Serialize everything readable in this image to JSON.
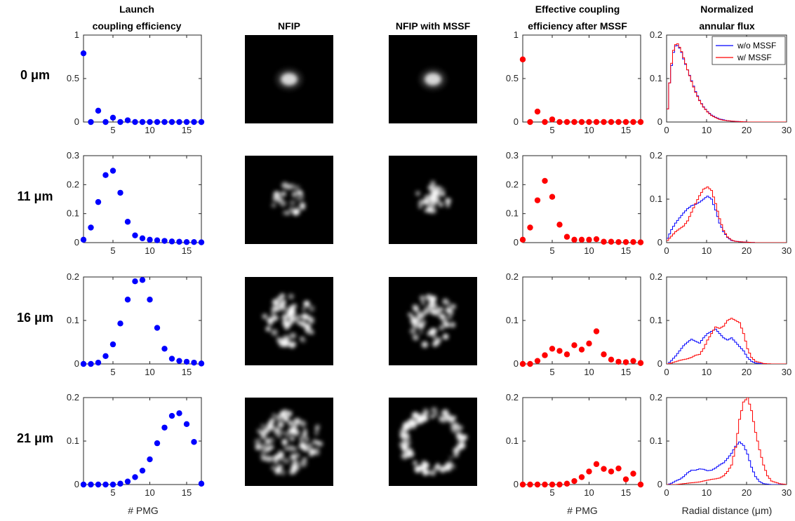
{
  "headers": {
    "launch": [
      "Launch",
      "coupling efficiency"
    ],
    "nfip": "NFIP",
    "nfip_mssf": "NFIP with MSSF",
    "effective": [
      "Effective coupling",
      "efficiency after MSSF"
    ],
    "annular": [
      "Normalized",
      "annular flux"
    ]
  },
  "row_labels": [
    "0 μm",
    "11 μm",
    "16 μm",
    "21 μm"
  ],
  "xlabels": {
    "pmg": "# PMG",
    "radial": "Radial distance (μm)"
  },
  "colors": {
    "blue": "#0000ff",
    "red": "#ff0000"
  },
  "chart_data": [
    {
      "type": "scatter",
      "panel": "launch-coupling-efficiency",
      "xlabel": "# PMG",
      "xlim": [
        1,
        17
      ],
      "xticks": [
        5,
        10,
        15
      ],
      "color": "#0000ff",
      "x": [
        1,
        2,
        3,
        4,
        5,
        6,
        7,
        8,
        9,
        10,
        11,
        12,
        13,
        14,
        15,
        16,
        17
      ],
      "rows": [
        {
          "offset": "0 μm",
          "ylim": [
            0,
            1
          ],
          "yticks": [
            "0",
            "0.5",
            "1"
          ],
          "values": [
            0.79,
            0.0,
            0.13,
            0.0,
            0.05,
            0.0,
            0.02,
            0.0,
            0.0,
            0.0,
            0.0,
            0.0,
            0.0,
            0.0,
            0.0,
            0.0,
            0.0
          ]
        },
        {
          "offset": "11 μm",
          "ylim": [
            0,
            0.3
          ],
          "yticks": [
            "0",
            "0.1",
            "0.2",
            "0.3"
          ],
          "values": [
            0.01,
            0.052,
            0.14,
            0.233,
            0.248,
            0.172,
            0.072,
            0.025,
            0.015,
            0.01,
            0.008,
            0.006,
            0.004,
            0.003,
            0.002,
            0.002,
            0.001
          ]
        },
        {
          "offset": "16 μm",
          "ylim": [
            0,
            0.2
          ],
          "yticks": [
            "0",
            "0.1",
            "0.2"
          ],
          "values": [
            0.0,
            0.0,
            0.003,
            0.018,
            0.045,
            0.093,
            0.148,
            0.19,
            0.193,
            0.148,
            0.083,
            0.035,
            0.012,
            0.007,
            0.005,
            0.003,
            0.001
          ]
        },
        {
          "offset": "21 μm",
          "ylim": [
            0,
            0.2
          ],
          "yticks": [
            "0",
            "0.1",
            "0.2"
          ],
          "values": [
            0.0,
            0.0,
            0.0,
            0.0,
            0.0,
            0.002,
            0.007,
            0.017,
            0.032,
            0.058,
            0.095,
            0.131,
            0.158,
            0.164,
            0.139,
            0.098,
            0.002
          ]
        }
      ]
    },
    {
      "type": "scatter",
      "panel": "effective-coupling-efficiency-after-mssf",
      "xlabel": "# PMG",
      "xlim": [
        1,
        17
      ],
      "xticks": [
        5,
        10,
        15
      ],
      "color": "#ff0000",
      "x": [
        1,
        2,
        3,
        4,
        5,
        6,
        7,
        8,
        9,
        10,
        11,
        12,
        13,
        14,
        15,
        16,
        17
      ],
      "rows": [
        {
          "offset": "0 μm",
          "ylim": [
            0,
            1
          ],
          "yticks": [
            "0",
            "0.5",
            "1"
          ],
          "values": [
            0.72,
            0.0,
            0.12,
            0.0,
            0.03,
            0.0,
            0.0,
            0.0,
            0.0,
            0.0,
            0.0,
            0.0,
            0.0,
            0.0,
            0.0,
            0.0,
            0.0
          ]
        },
        {
          "offset": "11 μm",
          "ylim": [
            0,
            0.3
          ],
          "yticks": [
            "0",
            "0.1",
            "0.2",
            "0.3"
          ],
          "values": [
            0.01,
            0.052,
            0.146,
            0.213,
            0.158,
            0.062,
            0.02,
            0.01,
            0.01,
            0.01,
            0.012,
            0.003,
            0.003,
            0.002,
            0.002,
            0.002,
            0.001
          ]
        },
        {
          "offset": "16 μm",
          "ylim": [
            0,
            0.2
          ],
          "yticks": [
            "0",
            "0.1",
            "0.2"
          ],
          "values": [
            0.0,
            0.0,
            0.007,
            0.02,
            0.035,
            0.03,
            0.022,
            0.043,
            0.033,
            0.047,
            0.075,
            0.022,
            0.01,
            0.005,
            0.004,
            0.007,
            0.002
          ]
        },
        {
          "offset": "21 μm",
          "ylim": [
            0,
            0.2
          ],
          "yticks": [
            "0",
            "0.1",
            "0.2"
          ],
          "values": [
            0.0,
            0.0,
            0.0,
            0.0,
            0.0,
            0.0,
            0.002,
            0.008,
            0.017,
            0.03,
            0.047,
            0.036,
            0.03,
            0.037,
            0.012,
            0.025,
            0.0
          ]
        }
      ]
    },
    {
      "type": "line",
      "panel": "normalized-annular-flux",
      "xlabel": "Radial distance (μm)",
      "xlim": [
        0,
        30
      ],
      "xticks": [
        0,
        10,
        20,
        30
      ],
      "legend": {
        "placement": "top-right",
        "entries": [
          "w/o MSSF",
          "w/ MSSF"
        ]
      },
      "rows": [
        {
          "offset": "0 μm",
          "ylim": [
            0,
            0.2
          ],
          "yticks": [
            "0",
            "0.1",
            "0.2"
          ],
          "series": [
            {
              "name": "w/o MSSF",
              "color": "#0000ff",
              "x": [
                0,
                0.5,
                1,
                1.5,
                2,
                2.5,
                3,
                3.5,
                4,
                5,
                6,
                7,
                8,
                9,
                10,
                11,
                12,
                13,
                14,
                15,
                16,
                18,
                20,
                22,
                25,
                30
              ],
              "values": [
                0.03,
                0.09,
                0.13,
                0.16,
                0.175,
                0.176,
                0.17,
                0.16,
                0.145,
                0.12,
                0.095,
                0.07,
                0.05,
                0.035,
                0.024,
                0.016,
                0.011,
                0.007,
                0.005,
                0.003,
                0.002,
                0.001,
                0.0,
                0.0,
                0.0,
                0.0
              ]
            },
            {
              "name": "w/ MSSF",
              "color": "#ff0000",
              "x": [
                0,
                0.5,
                1,
                1.5,
                2,
                2.5,
                3,
                3.5,
                4,
                5,
                6,
                7,
                8,
                9,
                10,
                11,
                12,
                13,
                14,
                15,
                16,
                18,
                20,
                22,
                25,
                30
              ],
              "values": [
                0.03,
                0.09,
                0.135,
                0.165,
                0.178,
                0.18,
                0.172,
                0.162,
                0.148,
                0.12,
                0.093,
                0.068,
                0.049,
                0.034,
                0.023,
                0.015,
                0.01,
                0.006,
                0.004,
                0.003,
                0.002,
                0.001,
                0.0,
                0.0,
                0.0,
                0.0
              ]
            }
          ]
        },
        {
          "offset": "11 μm",
          "ylim": [
            0,
            0.2
          ],
          "yticks": [
            "0",
            "0.1",
            "0.2"
          ],
          "series": [
            {
              "name": "w/o MSSF",
              "color": "#0000ff",
              "x": [
                0,
                1,
                2,
                3,
                4,
                5,
                6,
                7,
                8,
                9,
                10,
                11,
                12,
                13,
                14,
                15,
                16,
                17,
                18,
                20,
                22,
                25,
                30
              ],
              "values": [
                0.01,
                0.03,
                0.045,
                0.057,
                0.068,
                0.078,
                0.085,
                0.088,
                0.093,
                0.1,
                0.107,
                0.1,
                0.075,
                0.045,
                0.025,
                0.012,
                0.005,
                0.003,
                0.002,
                0.001,
                0.0,
                0.0,
                0.0
              ]
            },
            {
              "name": "w/ MSSF",
              "color": "#ff0000",
              "x": [
                0,
                1,
                2,
                3,
                4,
                5,
                6,
                7,
                8,
                9,
                10,
                11,
                12,
                13,
                14,
                15,
                16,
                17,
                18,
                20,
                22,
                25,
                30
              ],
              "values": [
                0.005,
                0.015,
                0.025,
                0.032,
                0.038,
                0.05,
                0.07,
                0.09,
                0.108,
                0.123,
                0.128,
                0.12,
                0.09,
                0.055,
                0.028,
                0.013,
                0.006,
                0.003,
                0.002,
                0.001,
                0.0,
                0.0,
                0.0
              ]
            }
          ]
        },
        {
          "offset": "16 μm",
          "ylim": [
            0,
            0.2
          ],
          "yticks": [
            "0",
            "0.1",
            "0.2"
          ],
          "series": [
            {
              "name": "w/o MSSF",
              "color": "#0000ff",
              "x": [
                0,
                1,
                2,
                3,
                4,
                5,
                6,
                7,
                8,
                9,
                10,
                11,
                12,
                13,
                14,
                15,
                16,
                17,
                18,
                19,
                20,
                21,
                22,
                24,
                26,
                30
              ],
              "values": [
                0.0,
                0.008,
                0.018,
                0.03,
                0.042,
                0.05,
                0.057,
                0.052,
                0.048,
                0.06,
                0.07,
                0.075,
                0.08,
                0.07,
                0.06,
                0.055,
                0.06,
                0.05,
                0.04,
                0.03,
                0.015,
                0.006,
                0.002,
                0.0,
                0.0,
                0.0
              ]
            },
            {
              "name": "w/ MSSF",
              "color": "#ff0000",
              "x": [
                0,
                1,
                2,
                3,
                4,
                5,
                6,
                7,
                8,
                9,
                10,
                11,
                12,
                13,
                14,
                15,
                16,
                17,
                18,
                19,
                20,
                21,
                22,
                24,
                26,
                30
              ],
              "values": [
                0.0,
                0.002,
                0.005,
                0.008,
                0.01,
                0.012,
                0.015,
                0.02,
                0.022,
                0.035,
                0.055,
                0.07,
                0.085,
                0.082,
                0.087,
                0.1,
                0.105,
                0.1,
                0.095,
                0.07,
                0.035,
                0.015,
                0.006,
                0.001,
                0.0,
                0.0
              ]
            }
          ]
        },
        {
          "offset": "21 μm",
          "ylim": [
            0,
            0.2
          ],
          "yticks": [
            "0",
            "0.1",
            "0.2"
          ],
          "series": [
            {
              "name": "w/o MSSF",
              "color": "#0000ff",
              "x": [
                0,
                1,
                2,
                3,
                4,
                5,
                6,
                7,
                8,
                9,
                10,
                11,
                12,
                13,
                14,
                15,
                16,
                17,
                18,
                19,
                20,
                21,
                22,
                23,
                24,
                26,
                30
              ],
              "values": [
                0.0,
                0.003,
                0.008,
                0.012,
                0.018,
                0.027,
                0.033,
                0.033,
                0.036,
                0.035,
                0.032,
                0.033,
                0.038,
                0.045,
                0.05,
                0.06,
                0.072,
                0.088,
                0.098,
                0.09,
                0.07,
                0.04,
                0.018,
                0.007,
                0.002,
                0.0,
                0.0
              ]
            },
            {
              "name": "w/ MSSF",
              "color": "#ff0000",
              "x": [
                0,
                1,
                2,
                3,
                4,
                5,
                6,
                7,
                8,
                9,
                10,
                11,
                12,
                13,
                14,
                15,
                16,
                17,
                18,
                19,
                20,
                21,
                22,
                23,
                24,
                25,
                26,
                28,
                30
              ],
              "values": [
                0.0,
                0.0,
                0.0,
                0.001,
                0.002,
                0.003,
                0.004,
                0.005,
                0.006,
                0.008,
                0.01,
                0.012,
                0.013,
                0.015,
                0.02,
                0.03,
                0.045,
                0.085,
                0.15,
                0.19,
                0.2,
                0.17,
                0.12,
                0.08,
                0.045,
                0.02,
                0.008,
                0.002,
                0.0
              ]
            }
          ]
        }
      ]
    }
  ]
}
